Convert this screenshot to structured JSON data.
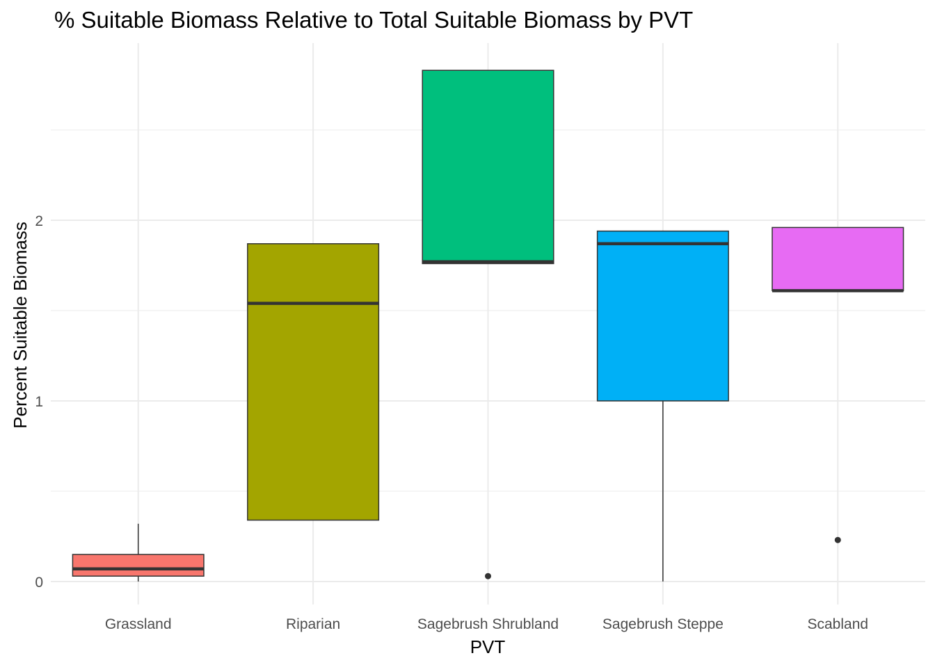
{
  "chart_data": {
    "type": "boxplot",
    "title": "% Suitable Biomass Relative to Total Suitable Biomass by PVT",
    "xlabel": "PVT",
    "ylabel": "Percent Suitable Biomass",
    "categories": [
      "Grassland",
      "Riparian",
      "Sagebrush Shrubland",
      "Sagebrush Steppe",
      "Scabland"
    ],
    "y_ticks": [
      "0",
      "1",
      "2"
    ],
    "ylim": [
      -0.13,
      2.97
    ],
    "grid": true,
    "legend": "none",
    "boxes": [
      {
        "category": "Grassland",
        "whisker_low": 0.0,
        "q1": 0.03,
        "median": 0.07,
        "q3": 0.15,
        "whisker_high": 0.32,
        "outliers": [],
        "color": "#F8766D"
      },
      {
        "category": "Riparian",
        "whisker_low": 0.34,
        "q1": 0.34,
        "median": 1.54,
        "q3": 1.87,
        "whisker_high": 1.87,
        "outliers": [],
        "color": "#A3A500"
      },
      {
        "category": "Sagebrush Shrubland",
        "whisker_low": 1.76,
        "q1": 1.76,
        "median": 1.77,
        "q3": 2.83,
        "whisker_high": 2.83,
        "outliers": [
          0.03
        ],
        "color": "#00BF7D"
      },
      {
        "category": "Sagebrush Steppe",
        "whisker_low": 0.0,
        "q1": 1.0,
        "median": 1.87,
        "q3": 1.94,
        "whisker_high": 1.94,
        "outliers": [],
        "color": "#00B0F6"
      },
      {
        "category": "Scabland",
        "whisker_low": 1.61,
        "q1": 1.61,
        "median": 1.61,
        "q3": 1.96,
        "whisker_high": 1.96,
        "outliers": [
          0.23
        ],
        "color": "#E76BF3"
      }
    ]
  }
}
